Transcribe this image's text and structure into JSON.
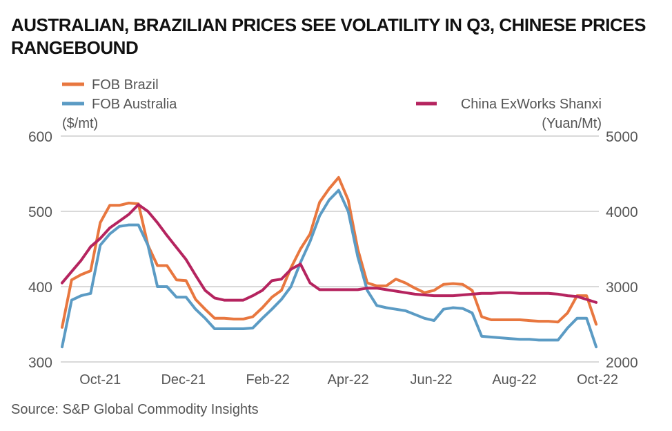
{
  "chart_data": {
    "type": "line",
    "title": "AUSTRALIAN, BRAZILIAN PRICES SEE VOLATILITY IN Q3, CHINESE PRICES RANGEBOUND",
    "source": "Source: S&P Global Commodity Insights",
    "left_axis": {
      "unit_label": "($/mt)",
      "range": [
        300,
        600
      ],
      "ticks": [
        "600",
        "500",
        "400",
        "300"
      ]
    },
    "right_axis": {
      "unit_label": "(Yuan/Mt)",
      "range": [
        2000,
        5000
      ],
      "ticks": [
        "5000",
        "4000",
        "3000",
        "2000"
      ]
    },
    "xlim": [
      "2021-09-02",
      "2022-10-02"
    ],
    "x_ticks": [
      {
        "date": "2021-10-01",
        "label": "Oct-21"
      },
      {
        "date": "2021-12-01",
        "label": "Dec-21"
      },
      {
        "date": "2022-02-01",
        "label": "Feb-22"
      },
      {
        "date": "2022-04-01",
        "label": "Apr-22"
      },
      {
        "date": "2022-06-01",
        "label": "Jun-22"
      },
      {
        "date": "2022-08-01",
        "label": "Aug-22"
      },
      {
        "date": "2022-10-01",
        "label": "Oct-22"
      }
    ],
    "grid": "horizontal",
    "x": [
      "2021-09-03",
      "2021-09-10",
      "2021-09-17",
      "2021-09-24",
      "2021-10-01",
      "2021-10-08",
      "2021-10-15",
      "2021-10-22",
      "2021-10-29",
      "2021-11-05",
      "2021-11-12",
      "2021-11-19",
      "2021-11-26",
      "2021-12-03",
      "2021-12-10",
      "2021-12-17",
      "2021-12-24",
      "2021-12-31",
      "2022-01-07",
      "2022-01-14",
      "2022-01-21",
      "2022-01-28",
      "2022-02-04",
      "2022-02-11",
      "2022-02-18",
      "2022-02-25",
      "2022-03-04",
      "2022-03-11",
      "2022-03-18",
      "2022-03-25",
      "2022-04-01",
      "2022-04-08",
      "2022-04-15",
      "2022-04-22",
      "2022-04-29",
      "2022-05-06",
      "2022-05-13",
      "2022-05-20",
      "2022-05-27",
      "2022-06-03",
      "2022-06-10",
      "2022-06-17",
      "2022-06-24",
      "2022-07-01",
      "2022-07-08",
      "2022-07-15",
      "2022-07-22",
      "2022-07-29",
      "2022-08-05",
      "2022-08-12",
      "2022-08-19",
      "2022-08-26",
      "2022-09-02",
      "2022-09-09",
      "2022-09-16",
      "2022-09-23",
      "2022-09-30"
    ],
    "series": [
      {
        "name": "FOB Brazil",
        "axis": "left",
        "color": "#E8773F",
        "values": [
          346,
          409,
          416,
          421,
          485,
          508,
          508,
          511,
          510,
          455,
          428,
          428,
          409,
          408,
          383,
          370,
          358,
          358,
          357,
          357,
          360,
          372,
          386,
          395,
          425,
          450,
          470,
          512,
          530,
          545,
          515,
          450,
          405,
          401,
          401,
          410,
          405,
          398,
          392,
          395,
          403,
          404,
          403,
          395,
          360,
          356,
          356,
          356,
          356,
          355,
          354,
          354,
          353,
          365,
          388,
          388,
          350
        ]
      },
      {
        "name": "FOB Australia",
        "axis": "left",
        "color": "#5B9BC4",
        "values": [
          320,
          382,
          388,
          391,
          455,
          470,
          480,
          482,
          482,
          455,
          400,
          400,
          386,
          386,
          370,
          358,
          344,
          344,
          344,
          344,
          345,
          358,
          370,
          383,
          400,
          432,
          460,
          494,
          515,
          528,
          500,
          440,
          395,
          375,
          372,
          370,
          368,
          363,
          358,
          355,
          370,
          372,
          371,
          365,
          334,
          333,
          332,
          331,
          330,
          330,
          329,
          329,
          329,
          345,
          358,
          358,
          320
        ]
      },
      {
        "name": "China ExWorks Shanxi",
        "axis": "right",
        "color": "#B5245F",
        "values": [
          3050,
          3200,
          3350,
          3530,
          3640,
          3780,
          3870,
          3960,
          4090,
          4000,
          3850,
          3680,
          3520,
          3360,
          3150,
          2950,
          2850,
          2820,
          2820,
          2820,
          2880,
          2950,
          3080,
          3100,
          3230,
          3300,
          3050,
          2960,
          2960,
          2960,
          2960,
          2960,
          2980,
          2980,
          2960,
          2940,
          2920,
          2900,
          2890,
          2880,
          2880,
          2880,
          2890,
          2900,
          2910,
          2910,
          2920,
          2920,
          2910,
          2910,
          2910,
          2910,
          2900,
          2880,
          2870,
          2830,
          2790
        ]
      }
    ],
    "legend_placement": "top"
  }
}
